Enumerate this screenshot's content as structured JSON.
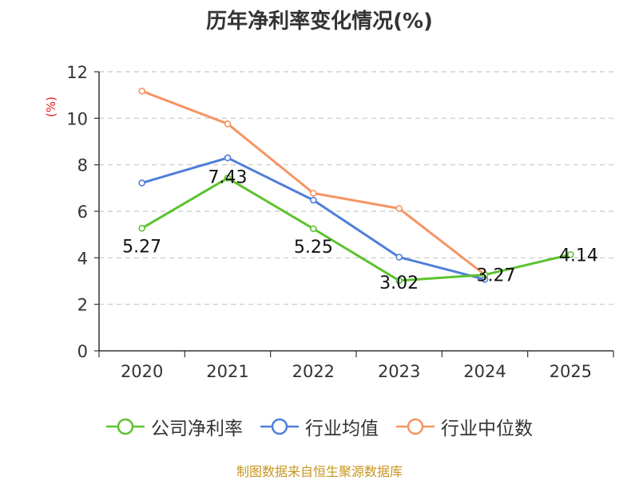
{
  "chart_data": {
    "type": "line",
    "title": "历年净利率变化情况(%)",
    "ylabel": "(%)",
    "xlabel": "",
    "categories": [
      "2020",
      "2021",
      "2022",
      "2023",
      "2024",
      "2025"
    ],
    "ylim": [
      0,
      12
    ],
    "yticks": [
      0,
      2,
      4,
      6,
      8,
      10,
      12
    ],
    "grid": true,
    "legend_position": "bottom",
    "series": [
      {
        "name": "公司净利率",
        "color": "#5dc22f",
        "values": [
          5.27,
          7.43,
          5.25,
          3.02,
          3.27,
          4.14
        ],
        "labels": [
          "5.27",
          "7.43",
          "5.25",
          "3.02",
          "3.27",
          "4.14"
        ]
      },
      {
        "name": "行业均值",
        "color": "#4e7fd9",
        "values": [
          7.22,
          8.3,
          6.48,
          4.03,
          3.07,
          null
        ]
      },
      {
        "name": "行业中位数",
        "color": "#f59464",
        "values": [
          11.17,
          9.76,
          6.78,
          6.12,
          3.27,
          null
        ]
      }
    ]
  },
  "source": "制图数据来自恒生聚源数据库"
}
